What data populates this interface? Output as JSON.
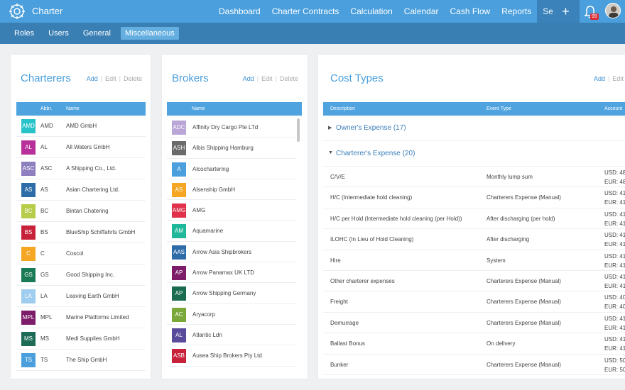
{
  "app": {
    "brand": "Charter"
  },
  "nav": [
    {
      "label": "Dashboard"
    },
    {
      "label": "Charter Contracts"
    },
    {
      "label": "Calculation"
    },
    {
      "label": "Calendar"
    },
    {
      "label": "Cash Flow"
    },
    {
      "label": "Reports"
    },
    {
      "label": "Settings",
      "active": true
    }
  ],
  "topbar": {
    "plus": "+",
    "notification_count": "99"
  },
  "subnav": [
    {
      "label": "Roles"
    },
    {
      "label": "Users"
    },
    {
      "label": "General"
    },
    {
      "label": "Miscellaneous",
      "active": true
    }
  ],
  "actions": {
    "add": "Add",
    "edit": "Edit",
    "delete": "Delete"
  },
  "charterers": {
    "title": "Charterers",
    "columns": {
      "abbr": "Abbr.",
      "name": "Name"
    },
    "rows": [
      {
        "abbr": "AMD",
        "name": "AMD GmbH",
        "color": "#28c3c9"
      },
      {
        "abbr": "AL",
        "name": "All Waters GmbH",
        "color": "#b8309a"
      },
      {
        "abbr": "ASC",
        "name": "A Shipping Co., Ltd.",
        "color": "#8e7fbf"
      },
      {
        "abbr": "AS",
        "name": "Asian Chartering Ltd.",
        "color": "#2e6ca7"
      },
      {
        "abbr": "BC",
        "name": "Bintan Chatering",
        "color": "#b7cc4a"
      },
      {
        "abbr": "BS",
        "name": "BlueShip Schiffahrts GmbH",
        "color": "#c8223b"
      },
      {
        "abbr": "C",
        "name": "Coscol",
        "color": "#f5a623"
      },
      {
        "abbr": "GS",
        "name": "Good Shipping Inc.",
        "color": "#1a7a55"
      },
      {
        "abbr": "LA",
        "name": "Leaving Earth GmbH",
        "color": "#9fcdef"
      },
      {
        "abbr": "MPL",
        "name": "Marine Platforms Limited",
        "color": "#7d1d6a"
      },
      {
        "abbr": "MS",
        "name": "Medi Supplies GmbH",
        "color": "#1d6b57"
      },
      {
        "abbr": "TS",
        "name": "The Ship GmbH",
        "color": "#4a9fdc"
      }
    ]
  },
  "brokers": {
    "title": "Brokers",
    "columns": {
      "name": "Name"
    },
    "rows": [
      {
        "abbr": "ADC",
        "name": "Affinity Dry Cargo Pte LTd",
        "color": "#b9a6d6"
      },
      {
        "abbr": "ASH",
        "name": "Albis Shipping Hamburg",
        "color": "#6b6b6b"
      },
      {
        "abbr": "A",
        "name": "Alcochartering",
        "color": "#4a9fdc"
      },
      {
        "abbr": "AS",
        "name": "Alsenship GmbH",
        "color": "#f5a623"
      },
      {
        "abbr": "AMG",
        "name": "AMG",
        "color": "#e0304a"
      },
      {
        "abbr": "AM",
        "name": "Aquamarine",
        "color": "#20b89a"
      },
      {
        "abbr": "AAS",
        "name": "Arrow Asia Shipbrokers",
        "color": "#2e6ca7"
      },
      {
        "abbr": "AP",
        "name": "Arrow Panamax UK LTD",
        "color": "#7d1d6a"
      },
      {
        "abbr": "AP",
        "name": "Arrow Shipping Germany",
        "color": "#1a6b50"
      },
      {
        "abbr": "AC",
        "name": "Aryacorp",
        "color": "#7aa93a"
      },
      {
        "abbr": "AL",
        "name": "Atlantic Ldn",
        "color": "#5a4a9a"
      },
      {
        "abbr": "ASB",
        "name": "Ausea Ship Brokers Pty Ltd",
        "color": "#c8223b"
      }
    ]
  },
  "cost_types": {
    "title": "Cost Types",
    "columns": {
      "description": "Description",
      "event_type": "Event Type",
      "account": "Account"
    },
    "groups": [
      {
        "label": "Owner's Expense (17)",
        "expanded": false
      },
      {
        "label": "Charterer's Expense (20)",
        "expanded": true
      }
    ],
    "rows": [
      {
        "description": "C/V/E",
        "event_type": "Monthly lump sum",
        "usd": "USD: 48",
        "eur": "EUR: 48"
      },
      {
        "description": "H/C (Intermediate hold cleaning)",
        "event_type": "Charterers Expense (Manual)",
        "usd": "USD: 41",
        "eur": "EUR: 41"
      },
      {
        "description": "H/C per Hold (Intermediate hold cleaning (per Hold))",
        "event_type": "After discharging (per hold)",
        "usd": "USD: 41",
        "eur": "EUR: 41"
      },
      {
        "description": "ILOHC (In Lieu of Hold Cleaning)",
        "event_type": "After discharging",
        "usd": "USD: 41",
        "eur": "EUR: 41"
      },
      {
        "description": "Hire",
        "event_type": "System",
        "usd": "USD: 41",
        "eur": "EUR: 41"
      },
      {
        "description": "Other charterer expenses",
        "event_type": "Charterers Expense (Manual)",
        "usd": "USD: 41",
        "eur": "EUR: 41"
      },
      {
        "description": "Freight",
        "event_type": "Charterers Expense (Manual)",
        "usd": "USD: 40",
        "eur": "EUR: 40"
      },
      {
        "description": "Demurrage",
        "event_type": "Charterers Expense (Manual)",
        "usd": "USD: 41",
        "eur": "EUR: 41"
      },
      {
        "description": "Ballast Bonus",
        "event_type": "On delivery",
        "usd": "USD: 41",
        "eur": "EUR: 41"
      },
      {
        "description": "Bunker",
        "event_type": "Charterers Expense (Manual)",
        "usd": "USD: 50",
        "eur": "EUR: 50"
      }
    ]
  }
}
